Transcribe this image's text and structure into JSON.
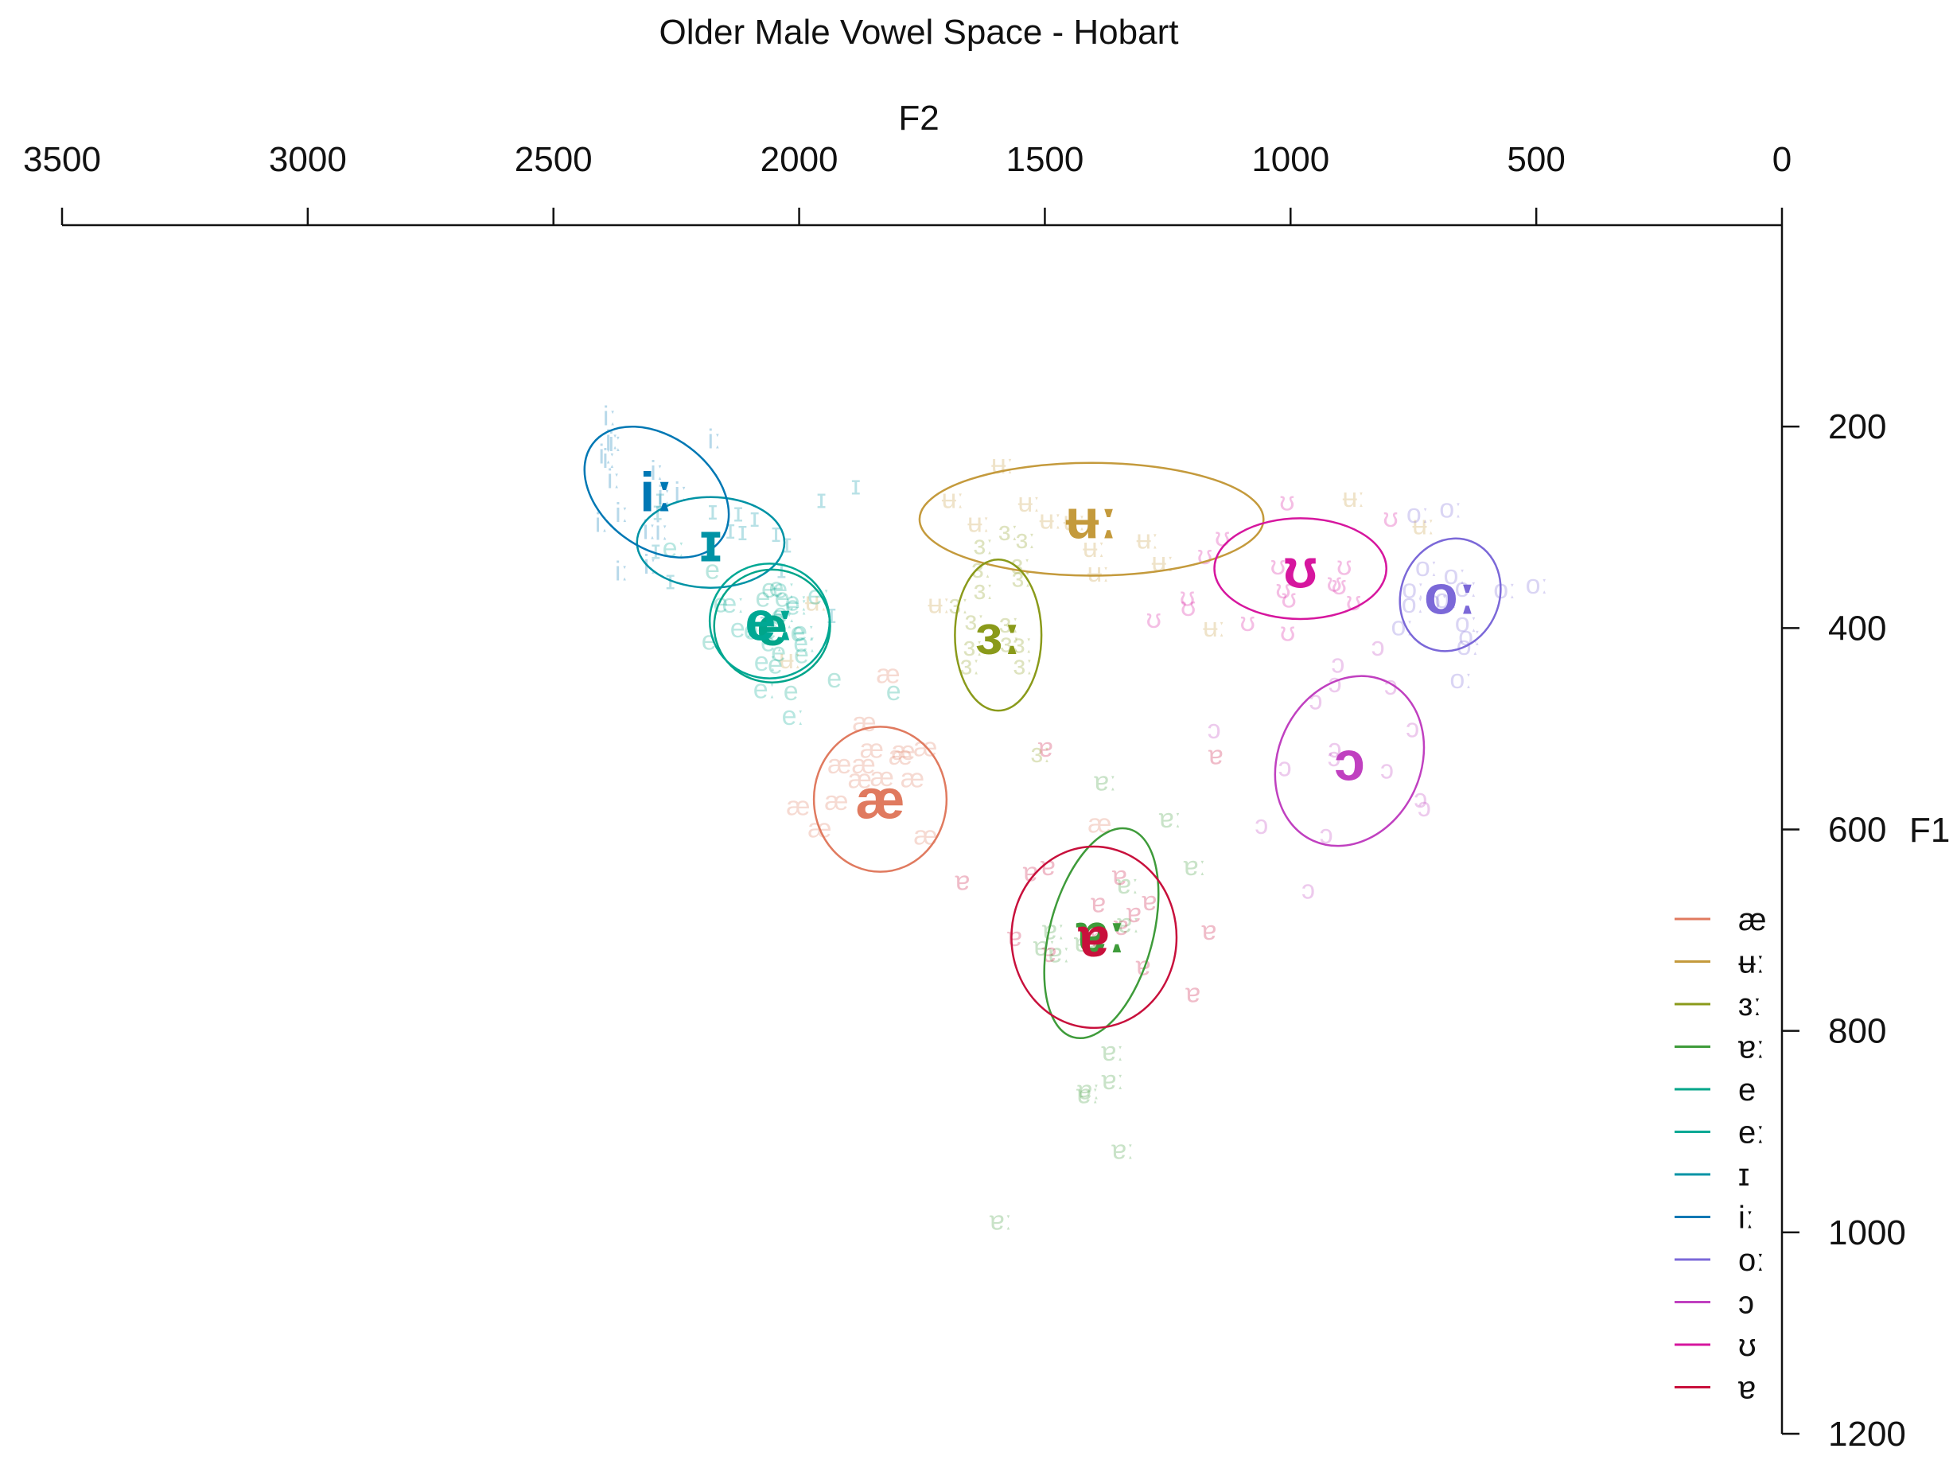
{
  "chart_data": {
    "type": "scatter",
    "title": "Older Male Vowel Space - Hobart",
    "xlabel": "F2",
    "ylabel": "F1",
    "xlim": [
      3500,
      0
    ],
    "ylim": [
      1200,
      0
    ],
    "x_ticks": [
      "3500",
      "3000",
      "2500",
      "2000",
      "1500",
      "1000",
      "500",
      "0"
    ],
    "y_ticks": [
      "200",
      "400",
      "600",
      "800",
      "1000",
      "1200"
    ],
    "x_axis_position": "top",
    "y_axis_position": "right",
    "legend_position": "bottom-right",
    "grid": false,
    "series": [
      {
        "name": "æ",
        "color": "#E07A5F",
        "f2": 1835,
        "f1": 570,
        "sd_f2": 135,
        "sd_f1": 72,
        "angle": 0
      },
      {
        "name": "ʉː",
        "color": "#C49A3C",
        "f2": 1405,
        "f1": 292,
        "sd_f2": 350,
        "sd_f1": 56,
        "angle": 0
      },
      {
        "name": "ɜː",
        "color": "#8A9A1A",
        "f2": 1595,
        "f1": 407,
        "sd_f2": 88,
        "sd_f1": 75,
        "angle": 0
      },
      {
        "name": "ɐː",
        "color": "#3E9B3A",
        "f2": 1385,
        "f1": 703,
        "sd_f2": 105,
        "sd_f1": 107,
        "angle": 15
      },
      {
        "name": "e",
        "color": "#00A58A",
        "f2": 2055,
        "f1": 398,
        "sd_f2": 118,
        "sd_f1": 56,
        "angle": 0
      },
      {
        "name": "eː",
        "color": "#00A894",
        "f2": 2060,
        "f1": 393,
        "sd_f2": 122,
        "sd_f1": 57,
        "angle": 0
      },
      {
        "name": "ɪ",
        "color": "#0093A5",
        "f2": 2180,
        "f1": 315,
        "sd_f2": 150,
        "sd_f1": 45,
        "angle": 0
      },
      {
        "name": "iː",
        "color": "#0078B4",
        "f2": 2290,
        "f1": 265,
        "sd_f2": 163,
        "sd_f1": 55,
        "angle": 37
      },
      {
        "name": "oː",
        "color": "#7B68D8",
        "f2": 675,
        "f1": 367,
        "sd_f2": 100,
        "sd_f1": 57,
        "angle": 22
      },
      {
        "name": "ɔ",
        "color": "#C040C0",
        "f2": 880,
        "f1": 532,
        "sd_f2": 145,
        "sd_f1": 87,
        "angle": 25
      },
      {
        "name": "ʊ",
        "color": "#D6169E",
        "f2": 980,
        "f1": 341,
        "sd_f2": 175,
        "sd_f1": 50,
        "angle": 0
      },
      {
        "name": "ɐ",
        "color": "#C8103C",
        "f2": 1400,
        "f1": 707,
        "sd_f2": 168,
        "sd_f1": 90,
        "angle": 0
      }
    ]
  }
}
